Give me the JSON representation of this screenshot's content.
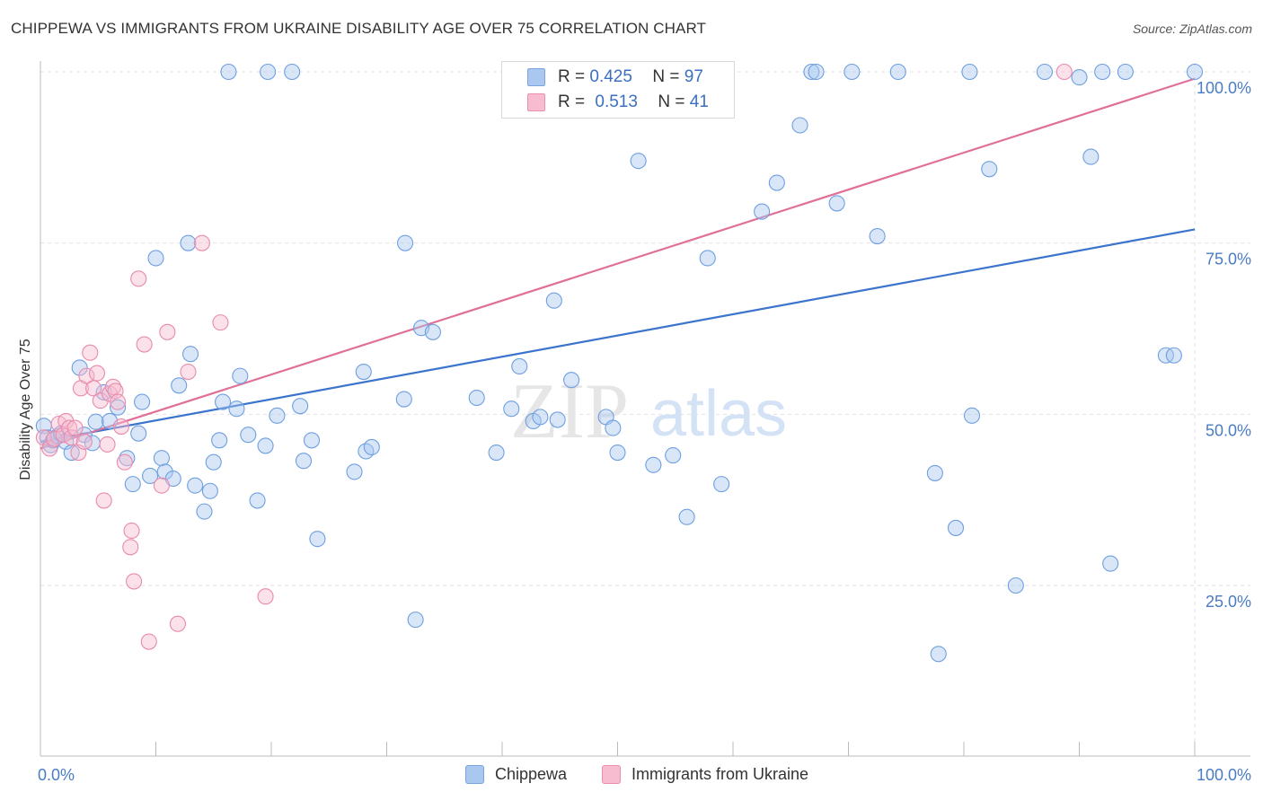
{
  "title": "CHIPPEWA VS IMMIGRANTS FROM UKRAINE DISABILITY AGE OVER 75 CORRELATION CHART",
  "source": "Source: ZipAtlas.com",
  "watermark": {
    "zip": "ZIP",
    "atlas": "atlas"
  },
  "legend": {
    "r_label": "R =",
    "n_label": "N =",
    "rows": [
      {
        "r": "0.425",
        "n": "97",
        "color": "#a9c7ef",
        "border": "#7aa6e0"
      },
      {
        "r": "0.513",
        "n": "41",
        "color": "#f7bcd0",
        "border": "#ea8fb0"
      }
    ]
  },
  "bottom_legend": [
    {
      "label": "Chippewa",
      "color": "#a9c7ef",
      "border": "#7aa6e0"
    },
    {
      "label": "Immigrants from Ukraine",
      "color": "#f7bcd0",
      "border": "#ea8fb0"
    }
  ],
  "chart_data": {
    "type": "scatter",
    "title": "CHIPPEWA VS IMMIGRANTS FROM UKRAINE DISABILITY AGE OVER 75 CORRELATION CHART",
    "xlabel": "",
    "ylabel": "Disability Age Over 75",
    "xlim": [
      0,
      100
    ],
    "ylim": [
      0,
      105
    ],
    "x_tick_labels": [
      "0.0%",
      "100.0%"
    ],
    "y_ticks": [
      25,
      50,
      75,
      100
    ],
    "y_tick_labels": [
      "25.0%",
      "50.0%",
      "75.0%",
      "100.0%"
    ],
    "grid": true,
    "legend_placement": "top-center",
    "series": [
      {
        "name": "Chippewa",
        "color": "#6f9fe0",
        "fill": "#a9c7ef",
        "trend": {
          "x": [
            0,
            100
          ],
          "y": [
            46.0,
            77.0
          ],
          "color": "#3b74cc"
        },
        "points": [
          [
            0.3,
            48.3
          ],
          [
            0.6,
            46.6
          ],
          [
            0.9,
            45.5
          ],
          [
            1.1,
            46.2
          ],
          [
            1.5,
            46.8
          ],
          [
            1.8,
            47.2
          ],
          [
            2.2,
            46.0
          ],
          [
            2.7,
            44.4
          ],
          [
            3.4,
            56.8
          ],
          [
            3.8,
            47.0
          ],
          [
            4.5,
            45.8
          ],
          [
            4.8,
            48.9
          ],
          [
            5.5,
            53.2
          ],
          [
            6.0,
            49.0
          ],
          [
            6.7,
            51.0
          ],
          [
            7.5,
            43.6
          ],
          [
            8.0,
            39.8
          ],
          [
            8.5,
            47.2
          ],
          [
            8.8,
            51.8
          ],
          [
            9.5,
            41.0
          ],
          [
            10.0,
            72.8
          ],
          [
            10.5,
            43.6
          ],
          [
            10.8,
            41.6
          ],
          [
            11.5,
            40.6
          ],
          [
            12.0,
            54.2
          ],
          [
            12.8,
            75.0
          ],
          [
            13.0,
            58.8
          ],
          [
            13.4,
            39.6
          ],
          [
            14.2,
            35.8
          ],
          [
            14.7,
            38.8
          ],
          [
            15.0,
            43.0
          ],
          [
            15.5,
            46.2
          ],
          [
            15.8,
            51.8
          ],
          [
            16.3,
            100
          ],
          [
            17.0,
            50.8
          ],
          [
            17.3,
            55.6
          ],
          [
            18.0,
            47.0
          ],
          [
            18.8,
            37.4
          ],
          [
            19.5,
            45.4
          ],
          [
            19.7,
            100
          ],
          [
            20.5,
            49.8
          ],
          [
            21.8,
            100
          ],
          [
            22.5,
            51.2
          ],
          [
            22.8,
            43.2
          ],
          [
            23.5,
            46.2
          ],
          [
            24.0,
            31.8
          ],
          [
            27.2,
            41.6
          ],
          [
            28.0,
            56.2
          ],
          [
            28.2,
            44.6
          ],
          [
            28.7,
            45.2
          ],
          [
            31.5,
            52.2
          ],
          [
            31.6,
            75.0
          ],
          [
            32.5,
            20.0
          ],
          [
            33.0,
            62.6
          ],
          [
            34.0,
            62.0
          ],
          [
            37.8,
            52.4
          ],
          [
            39.5,
            44.4
          ],
          [
            40.8,
            50.8
          ],
          [
            41.5,
            57.0
          ],
          [
            42.7,
            49.0
          ],
          [
            43.3,
            49.6
          ],
          [
            44.5,
            66.6
          ],
          [
            44.8,
            49.2
          ],
          [
            46.0,
            55.0
          ],
          [
            49.0,
            49.6
          ],
          [
            49.6,
            48.0
          ],
          [
            50.0,
            44.4
          ],
          [
            51.8,
            87.0
          ],
          [
            53.1,
            42.6
          ],
          [
            54.8,
            44.0
          ],
          [
            56.0,
            35.0
          ],
          [
            57.8,
            72.8
          ],
          [
            59.0,
            39.8
          ],
          [
            62.5,
            79.6
          ],
          [
            63.8,
            83.8
          ],
          [
            65.8,
            92.2
          ],
          [
            66.8,
            100
          ],
          [
            67.2,
            100
          ],
          [
            69.0,
            80.8
          ],
          [
            70.3,
            100
          ],
          [
            72.5,
            76.0
          ],
          [
            74.3,
            100
          ],
          [
            77.5,
            41.4
          ],
          [
            77.8,
            15.0
          ],
          [
            79.3,
            33.4
          ],
          [
            80.5,
            100
          ],
          [
            80.7,
            49.8
          ],
          [
            82.2,
            85.8
          ],
          [
            84.5,
            25.0
          ],
          [
            87.0,
            100
          ],
          [
            90.0,
            99.2
          ],
          [
            91.0,
            87.6
          ],
          [
            92.0,
            100
          ],
          [
            92.7,
            28.2
          ],
          [
            94.0,
            100
          ],
          [
            97.5,
            58.6
          ],
          [
            98.2,
            58.6
          ],
          [
            100.0,
            100
          ]
        ]
      },
      {
        "name": "Immigrants from Ukraine",
        "color": "#e98aac",
        "fill": "#f7bcd0",
        "trend": {
          "x": [
            0,
            100
          ],
          "y": [
            45.0,
            99.0
          ],
          "color": "#e07098"
        },
        "points": [
          [
            0.3,
            46.6
          ],
          [
            0.8,
            45.0
          ],
          [
            1.2,
            46.4
          ],
          [
            1.6,
            48.6
          ],
          [
            2.0,
            47.0
          ],
          [
            2.2,
            49.0
          ],
          [
            2.5,
            48.0
          ],
          [
            2.7,
            46.6
          ],
          [
            3.0,
            48.0
          ],
          [
            3.3,
            44.4
          ],
          [
            3.5,
            53.8
          ],
          [
            3.8,
            46.0
          ],
          [
            4.0,
            55.6
          ],
          [
            4.3,
            59.0
          ],
          [
            4.6,
            53.8
          ],
          [
            4.9,
            56.0
          ],
          [
            5.2,
            52.0
          ],
          [
            5.5,
            37.4
          ],
          [
            5.8,
            45.6
          ],
          [
            6.0,
            53.0
          ],
          [
            6.3,
            54.0
          ],
          [
            6.5,
            53.4
          ],
          [
            6.7,
            51.8
          ],
          [
            7.0,
            48.2
          ],
          [
            7.3,
            43.0
          ],
          [
            7.8,
            30.6
          ],
          [
            7.9,
            33.0
          ],
          [
            8.1,
            25.6
          ],
          [
            8.5,
            69.8
          ],
          [
            9.0,
            60.2
          ],
          [
            9.4,
            16.8
          ],
          [
            10.5,
            39.6
          ],
          [
            11.0,
            62.0
          ],
          [
            11.9,
            19.4
          ],
          [
            12.8,
            56.2
          ],
          [
            14.0,
            75.0
          ],
          [
            15.6,
            63.4
          ],
          [
            19.5,
            23.4
          ],
          [
            88.7,
            100
          ]
        ]
      }
    ]
  }
}
